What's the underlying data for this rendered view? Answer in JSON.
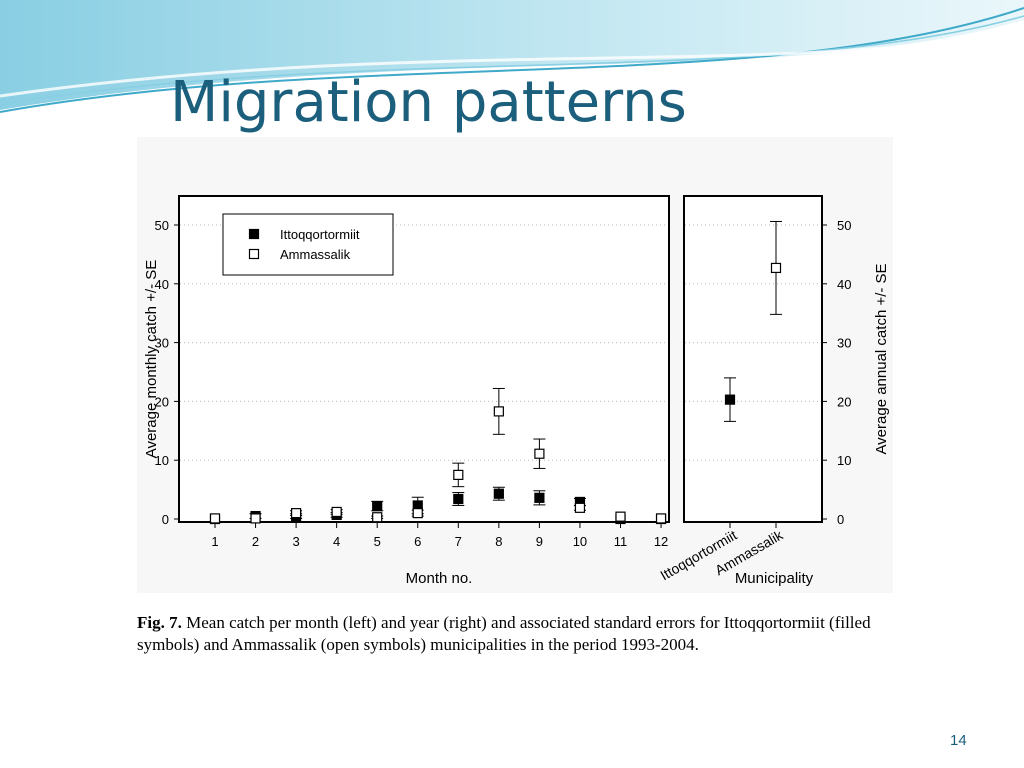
{
  "slide": {
    "title": "Migration patterns",
    "page_number": "14",
    "caption_label": "Fig. 7.",
    "caption_text": " Mean catch per month (left) and year (right) and associated standard errors for Ittoqqortormiit (filled symbols) and Ammassalik (open symbols) municipalities in the period 1993-2004."
  },
  "colors": {
    "title": "#1b5f7d",
    "wave_dark": "#3fa9c9",
    "wave_light": "#bfe6f1",
    "panel_background": "#f7f7f7"
  },
  "chart_data": [
    {
      "type": "scatter",
      "x": [
        1,
        2,
        3,
        4,
        5,
        6,
        7,
        8,
        9,
        10,
        11,
        12
      ],
      "xlabel": "Month no.",
      "ylabel": "Average monthly catch +/- SE",
      "ylim": [
        0,
        50
      ],
      "yticks": [
        0,
        10,
        20,
        30,
        40,
        50
      ],
      "grid": "horizontal dotted",
      "legend": "top-left",
      "series": [
        {
          "name": "Ittoqqortormiit",
          "marker": "filled-square",
          "values": [
            0,
            0.5,
            0.5,
            0.7,
            2.2,
            2.3,
            3.4,
            4.3,
            3.6,
            2.9,
            0,
            0
          ],
          "error": [
            0,
            0.4,
            0.4,
            0.4,
            0.8,
            1.4,
            1.1,
            1.1,
            1.2,
            0.6,
            0,
            0
          ]
        },
        {
          "name": "Ammassalik",
          "marker": "open-square",
          "values": [
            0.1,
            0.1,
            1.0,
            1.2,
            0.3,
            1.0,
            7.5,
            18.3,
            11.1,
            1.9,
            0.4,
            0.1
          ],
          "error": [
            0,
            0,
            0.4,
            0.4,
            0.2,
            0.5,
            2.0,
            3.9,
            2.5,
            0.4,
            0,
            0
          ]
        }
      ]
    },
    {
      "type": "scatter",
      "categories": [
        "Ittoqqortormiit",
        "Ammassalik"
      ],
      "xlabel": "Municipality",
      "ylabel": "Average annual catch +/- SE",
      "ylim": [
        0,
        50
      ],
      "yticks": [
        0,
        10,
        20,
        30,
        40,
        50
      ],
      "grid": "horizontal dotted",
      "series": [
        {
          "marker": "filled-square",
          "values": [
            20.3,
            null
          ],
          "error": [
            3.7,
            null
          ]
        },
        {
          "marker": "open-square",
          "values": [
            null,
            42.7
          ],
          "error": [
            null,
            7.9
          ]
        }
      ]
    }
  ]
}
